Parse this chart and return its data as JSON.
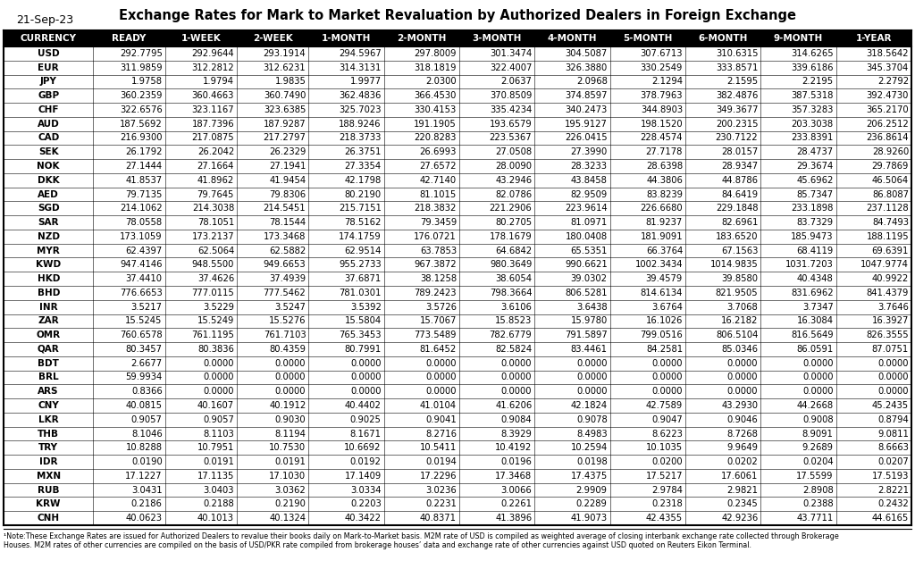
{
  "date": "21-Sep-23",
  "title": "Exchange Rates for Mark to Market Revaluation by Authorized Dealers in Foreign Exchange",
  "columns": [
    "CURRENCY",
    "READY",
    "1-WEEK",
    "2-WEEK",
    "1-MONTH",
    "2-MONTH",
    "3-MONTH",
    "4-MONTH",
    "5-MONTH",
    "6-MONTH",
    "9-MONTH",
    "1-YEAR"
  ],
  "rows": [
    [
      "USD",
      "292.7795",
      "292.9644",
      "293.1914",
      "294.5967",
      "297.8009",
      "301.3474",
      "304.5087",
      "307.6713",
      "310.6315",
      "314.6265",
      "318.5642"
    ],
    [
      "EUR",
      "311.9859",
      "312.2812",
      "312.6231",
      "314.3131",
      "318.1819",
      "322.4007",
      "326.3880",
      "330.2549",
      "333.8571",
      "339.6186",
      "345.3704"
    ],
    [
      "JPY",
      "1.9758",
      "1.9794",
      "1.9835",
      "1.9977",
      "2.0300",
      "2.0637",
      "2.0968",
      "2.1294",
      "2.1595",
      "2.2195",
      "2.2792"
    ],
    [
      "GBP",
      "360.2359",
      "360.4663",
      "360.7490",
      "362.4836",
      "366.4530",
      "370.8509",
      "374.8597",
      "378.7963",
      "382.4876",
      "387.5318",
      "392.4730"
    ],
    [
      "CHF",
      "322.6576",
      "323.1167",
      "323.6385",
      "325.7023",
      "330.4153",
      "335.4234",
      "340.2473",
      "344.8903",
      "349.3677",
      "357.3283",
      "365.2170"
    ],
    [
      "AUD",
      "187.5692",
      "187.7396",
      "187.9287",
      "188.9246",
      "191.1905",
      "193.6579",
      "195.9127",
      "198.1520",
      "200.2315",
      "203.3038",
      "206.2512"
    ],
    [
      "CAD",
      "216.9300",
      "217.0875",
      "217.2797",
      "218.3733",
      "220.8283",
      "223.5367",
      "226.0415",
      "228.4574",
      "230.7122",
      "233.8391",
      "236.8614"
    ],
    [
      "SEK",
      "26.1792",
      "26.2042",
      "26.2329",
      "26.3751",
      "26.6993",
      "27.0508",
      "27.3990",
      "27.7178",
      "28.0157",
      "28.4737",
      "28.9260"
    ],
    [
      "NOK",
      "27.1444",
      "27.1664",
      "27.1941",
      "27.3354",
      "27.6572",
      "28.0090",
      "28.3233",
      "28.6398",
      "28.9347",
      "29.3674",
      "29.7869"
    ],
    [
      "DKK",
      "41.8537",
      "41.8962",
      "41.9454",
      "42.1798",
      "42.7140",
      "43.2946",
      "43.8458",
      "44.3806",
      "44.8786",
      "45.6962",
      "46.5064"
    ],
    [
      "AED",
      "79.7135",
      "79.7645",
      "79.8306",
      "80.2190",
      "81.1015",
      "82.0786",
      "82.9509",
      "83.8239",
      "84.6419",
      "85.7347",
      "86.8087"
    ],
    [
      "SGD",
      "214.1062",
      "214.3038",
      "214.5451",
      "215.7151",
      "218.3832",
      "221.2906",
      "223.9614",
      "226.6680",
      "229.1848",
      "233.1898",
      "237.1128"
    ],
    [
      "SAR",
      "78.0558",
      "78.1051",
      "78.1544",
      "78.5162",
      "79.3459",
      "80.2705",
      "81.0971",
      "81.9237",
      "82.6961",
      "83.7329",
      "84.7493"
    ],
    [
      "NZD",
      "173.1059",
      "173.2137",
      "173.3468",
      "174.1759",
      "176.0721",
      "178.1679",
      "180.0408",
      "181.9091",
      "183.6520",
      "185.9473",
      "188.1195"
    ],
    [
      "MYR",
      "62.4397",
      "62.5064",
      "62.5882",
      "62.9514",
      "63.7853",
      "64.6842",
      "65.5351",
      "66.3764",
      "67.1563",
      "68.4119",
      "69.6391"
    ],
    [
      "KWD",
      "947.4146",
      "948.5500",
      "949.6653",
      "955.2733",
      "967.3872",
      "980.3649",
      "990.6621",
      "1002.3434",
      "1014.9835",
      "1031.7203",
      "1047.9774"
    ],
    [
      "HKD",
      "37.4410",
      "37.4626",
      "37.4939",
      "37.6871",
      "38.1258",
      "38.6054",
      "39.0302",
      "39.4579",
      "39.8580",
      "40.4348",
      "40.9922"
    ],
    [
      "BHD",
      "776.6653",
      "777.0115",
      "777.5462",
      "781.0301",
      "789.2423",
      "798.3664",
      "806.5281",
      "814.6134",
      "821.9505",
      "831.6962",
      "841.4379"
    ],
    [
      "INR",
      "3.5217",
      "3.5229",
      "3.5247",
      "3.5392",
      "3.5726",
      "3.6106",
      "3.6438",
      "3.6764",
      "3.7068",
      "3.7347",
      "3.7646"
    ],
    [
      "ZAR",
      "15.5245",
      "15.5249",
      "15.5276",
      "15.5804",
      "15.7067",
      "15.8523",
      "15.9780",
      "16.1026",
      "16.2182",
      "16.3084",
      "16.3927"
    ],
    [
      "OMR",
      "760.6578",
      "761.1195",
      "761.7103",
      "765.3453",
      "773.5489",
      "782.6779",
      "791.5897",
      "799.0516",
      "806.5104",
      "816.5649",
      "826.3555"
    ],
    [
      "QAR",
      "80.3457",
      "80.3836",
      "80.4359",
      "80.7991",
      "81.6452",
      "82.5824",
      "83.4461",
      "84.2581",
      "85.0346",
      "86.0591",
      "87.0751"
    ],
    [
      "BDT",
      "2.6677",
      "0.0000",
      "0.0000",
      "0.0000",
      "0.0000",
      "0.0000",
      "0.0000",
      "0.0000",
      "0.0000",
      "0.0000",
      "0.0000"
    ],
    [
      "BRL",
      "59.9934",
      "0.0000",
      "0.0000",
      "0.0000",
      "0.0000",
      "0.0000",
      "0.0000",
      "0.0000",
      "0.0000",
      "0.0000",
      "0.0000"
    ],
    [
      "ARS",
      "0.8366",
      "0.0000",
      "0.0000",
      "0.0000",
      "0.0000",
      "0.0000",
      "0.0000",
      "0.0000",
      "0.0000",
      "0.0000",
      "0.0000"
    ],
    [
      "CNY",
      "40.0815",
      "40.1607",
      "40.1912",
      "40.4402",
      "41.0104",
      "41.6206",
      "42.1824",
      "42.7589",
      "43.2930",
      "44.2668",
      "45.2435"
    ],
    [
      "LKR",
      "0.9057",
      "0.9057",
      "0.9030",
      "0.9025",
      "0.9041",
      "0.9084",
      "0.9078",
      "0.9047",
      "0.9046",
      "0.9008",
      "0.8794"
    ],
    [
      "THB",
      "8.1046",
      "8.1103",
      "8.1194",
      "8.1671",
      "8.2716",
      "8.3929",
      "8.4983",
      "8.6223",
      "8.7268",
      "8.9091",
      "9.0811"
    ],
    [
      "TRY",
      "10.8288",
      "10.7951",
      "10.7530",
      "10.6692",
      "10.5411",
      "10.4192",
      "10.2594",
      "10.1035",
      "9.9649",
      "9.2689",
      "8.6663"
    ],
    [
      "IDR",
      "0.0190",
      "0.0191",
      "0.0191",
      "0.0192",
      "0.0194",
      "0.0196",
      "0.0198",
      "0.0200",
      "0.0202",
      "0.0204",
      "0.0207"
    ],
    [
      "MXN",
      "17.1227",
      "17.1135",
      "17.1030",
      "17.1409",
      "17.2296",
      "17.3468",
      "17.4375",
      "17.5217",
      "17.6061",
      "17.5599",
      "17.5193"
    ],
    [
      "RUB",
      "3.0431",
      "3.0403",
      "3.0362",
      "3.0334",
      "3.0236",
      "3.0066",
      "2.9909",
      "2.9784",
      "2.9821",
      "2.8908",
      "2.8221"
    ],
    [
      "KRW",
      "0.2186",
      "0.2188",
      "0.2190",
      "0.2203",
      "0.2231",
      "0.2261",
      "0.2289",
      "0.2318",
      "0.2345",
      "0.2388",
      "0.2432"
    ],
    [
      "CNH",
      "40.0623",
      "40.1013",
      "40.1324",
      "40.3422",
      "40.8371",
      "41.3896",
      "41.9073",
      "42.4355",
      "42.9236",
      "43.7711",
      "44.6165"
    ]
  ],
  "note_line1": "¹Note:These Exchange Rates are issued for Authorized Dealers to revalue their books daily on Mark-to-Market basis. M2M rate of USD is compiled as weighted average of closing interbank exchange rate collected through Brokerage",
  "note_line2": "Houses. M2M rates of other currencies are compiled on the basis of USD/PKR rate compiled from brokerage houses’ data and exchange rate of other currencies against USD quoted on Reuters Eikon Terminal.",
  "col_widths_rel": [
    1.25,
    1.0,
    1.0,
    1.0,
    1.05,
    1.05,
    1.05,
    1.05,
    1.05,
    1.05,
    1.05,
    1.05
  ]
}
